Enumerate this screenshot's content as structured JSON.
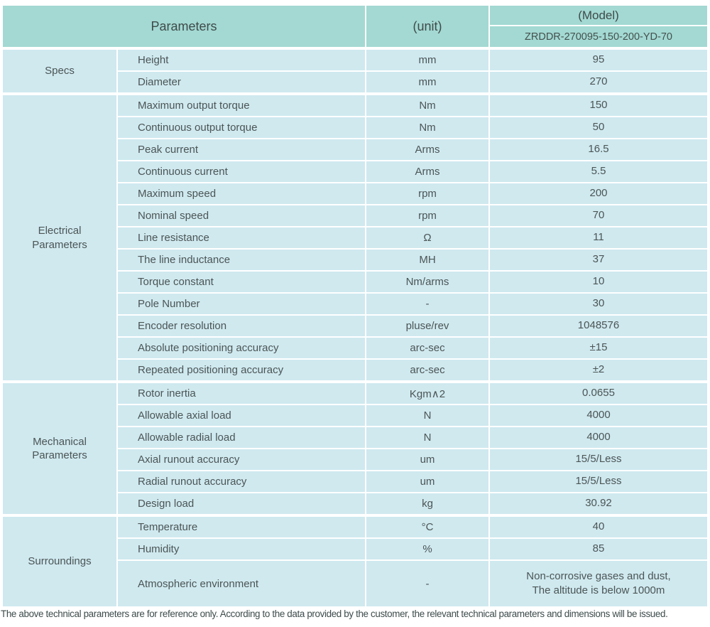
{
  "colors": {
    "header_bg": "#a3d9d2",
    "cell_bg": "#cfe9ef",
    "text": "#4c5555",
    "footnote_text": "#3e4b4b"
  },
  "table": {
    "header": {
      "parameters_label": "Parameters",
      "unit_label": "(unit)",
      "model_label": "(Model)",
      "model_value": "ZRDDR-270095-150-200-YD-70"
    },
    "sections": [
      {
        "group": "Specs",
        "rows": [
          {
            "name": "Height",
            "unit": "mm",
            "value": "95"
          },
          {
            "name": "Diameter",
            "unit": "mm",
            "value": "270"
          }
        ]
      },
      {
        "group": "Electrical Parameters",
        "rows": [
          {
            "name": "Maximum output torque",
            "unit": "Nm",
            "value": "150"
          },
          {
            "name": "Continuous output torque",
            "unit": "Nm",
            "value": "50"
          },
          {
            "name": "Peak current",
            "unit": "Arms",
            "value": "16.5"
          },
          {
            "name": "Continuous current",
            "unit": "Arms",
            "value": "5.5"
          },
          {
            "name": "Maximum speed",
            "unit": "rpm",
            "value": "200"
          },
          {
            "name": "Nominal speed",
            "unit": "rpm",
            "value": "70"
          },
          {
            "name": "Line resistance",
            "unit": "Ω",
            "value": "11"
          },
          {
            "name": "The line inductance",
            "unit": "MH",
            "value": "37"
          },
          {
            "name": "Torque constant",
            "unit": "Nm/arms",
            "value": "10"
          },
          {
            "name": "Pole Number",
            "unit": "-",
            "value": "30"
          },
          {
            "name": "Encoder resolution",
            "unit": "pluse/rev",
            "value": "1048576"
          },
          {
            "name": "Absolute positioning accuracy",
            "unit": "arc-sec",
            "value": "±15"
          },
          {
            "name": "Repeated positioning accuracy",
            "unit": "arc-sec",
            "value": "±2"
          }
        ]
      },
      {
        "group": "Mechanical Parameters",
        "rows": [
          {
            "name": "Rotor inertia",
            "unit": "Kgm∧2",
            "value": "0.0655"
          },
          {
            "name": "Allowable axial load",
            "unit": "N",
            "value": "4000"
          },
          {
            "name": "Allowable radial load",
            "unit": "N",
            "value": "4000"
          },
          {
            "name": "Axial runout accuracy",
            "unit": "um",
            "value": "15/5/Less"
          },
          {
            "name": "Radial runout accuracy",
            "unit": "um",
            "value": "15/5/Less"
          },
          {
            "name": "Design load",
            "unit": "kg",
            "value": "30.92"
          }
        ]
      },
      {
        "group": "Surroundings",
        "rows": [
          {
            "name": "Temperature",
            "unit": "°C",
            "value": "40"
          },
          {
            "name": "Humidity",
            "unit": "%",
            "value": "85"
          },
          {
            "name": "Atmospheric environment",
            "unit": "-",
            "value": "Non-corrosive gases and dust,\nThe altitude is below 1000m",
            "tall": true
          }
        ]
      }
    ],
    "footnote": "The above technical parameters are for reference only. According to the data provided by the customer, the relevant technical parameters and dimensions will be issued."
  }
}
